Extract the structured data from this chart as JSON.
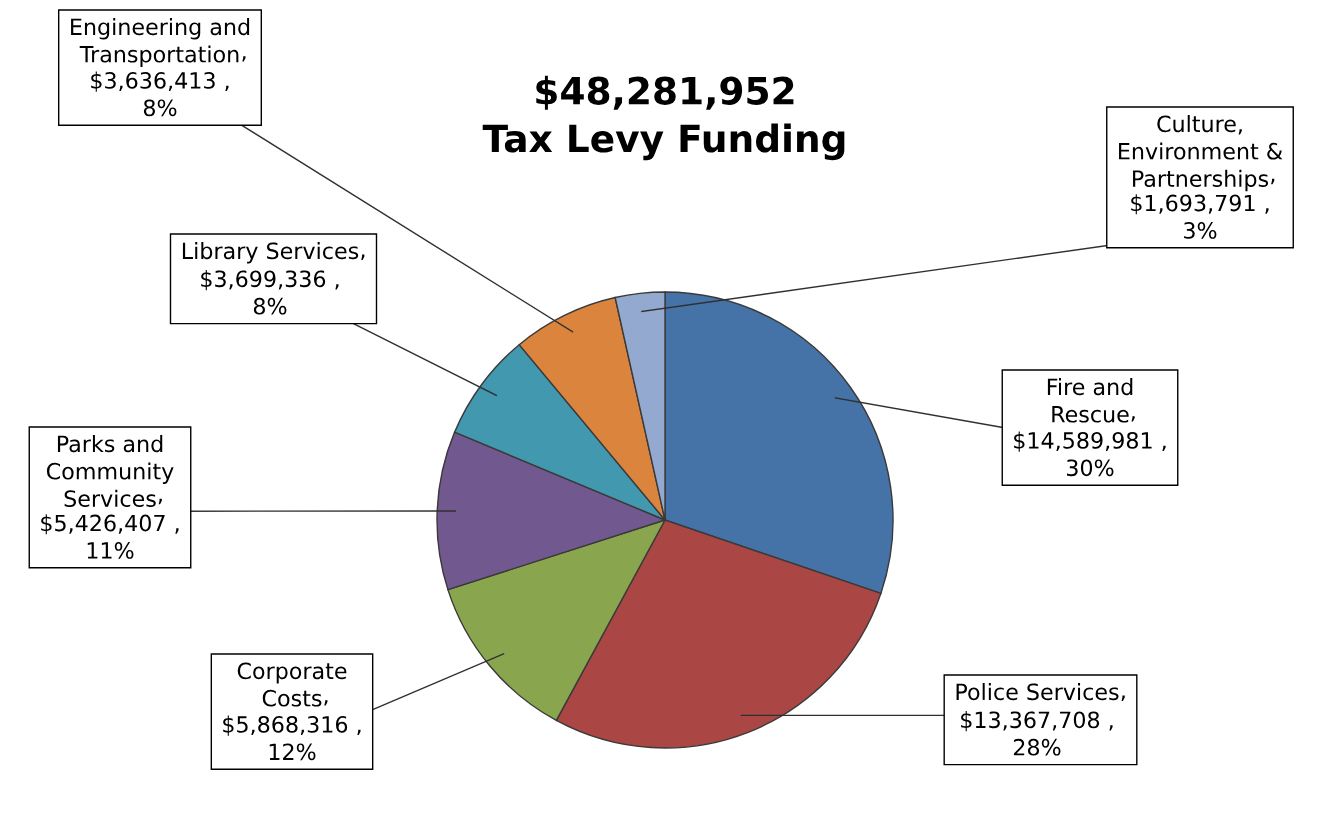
{
  "chart_data": {
    "type": "pie",
    "title": "$48,281,952\nTax Levy Funding",
    "categories": [
      "Fire and\nRescue",
      "Police Services",
      "Corporate\nCosts",
      "Parks and\nCommunity\nServices",
      "Library Services",
      "Engineering and\nTransportation",
      "Culture,\nEnvironment &\nPartnerships"
    ],
    "values": [
      14589981,
      13367708,
      5868316,
      5426407,
      3699336,
      3636413,
      1693791
    ],
    "value_labels": [
      ",\n$14,589,981 ,\n30%",
      ",\n$13,367,708 ,\n28%",
      ",\n$5,868,316 ,\n12%",
      ",\n$5,426,407 ,\n11%",
      ",\n$3,699,336 ,\n8%",
      ",\n$3,636,413 ,\n8%",
      ",\n$1,693,791 ,\n3%"
    ],
    "colors": [
      "#4572a7",
      "#aa4643",
      "#89a54e",
      "#71588f",
      "#4198af",
      "#db843d",
      "#93a9cf"
    ]
  }
}
